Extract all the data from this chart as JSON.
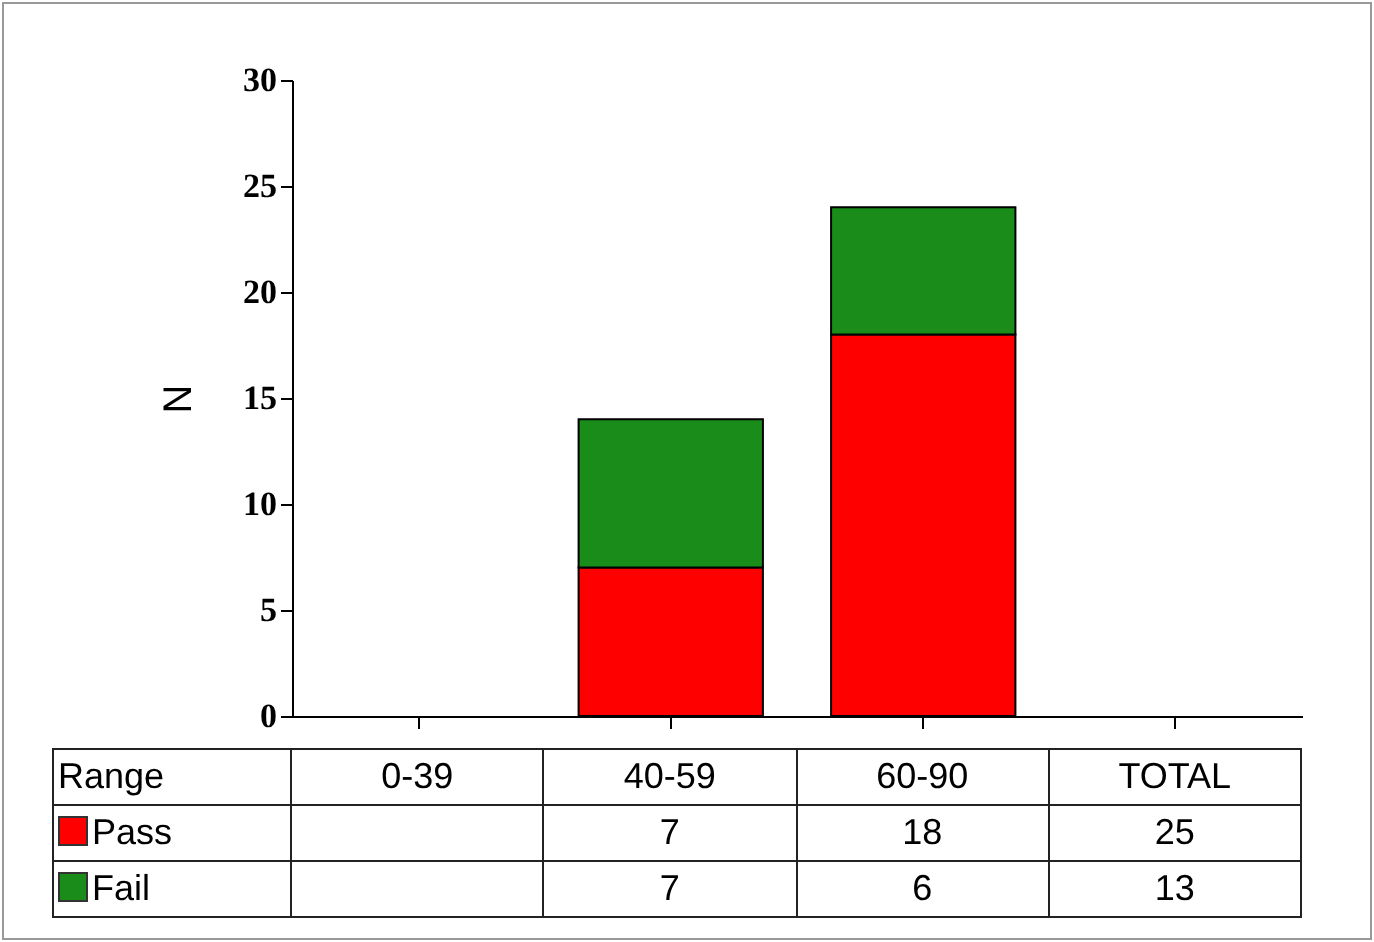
{
  "chart_data": {
    "type": "bar",
    "stacked": true,
    "xlabel": "Range",
    "ylabel": "N",
    "categories": [
      "0-39",
      "40-59",
      "60-90",
      "TOTAL"
    ],
    "series": [
      {
        "name": "Pass",
        "color": "#ff0000",
        "values": [
          null,
          7,
          18,
          null
        ],
        "value_labels": [
          null,
          "7",
          "18",
          "25"
        ]
      },
      {
        "name": "Fail",
        "color": "#1a8c1a",
        "values": [
          null,
          7,
          6,
          null
        ],
        "value_labels": [
          null,
          "7",
          "6",
          "13"
        ]
      }
    ],
    "ylim": [
      0,
      30
    ],
    "yticks": [
      0,
      5,
      10,
      15,
      20,
      25,
      30
    ],
    "grid": false,
    "legend": "bottom"
  }
}
